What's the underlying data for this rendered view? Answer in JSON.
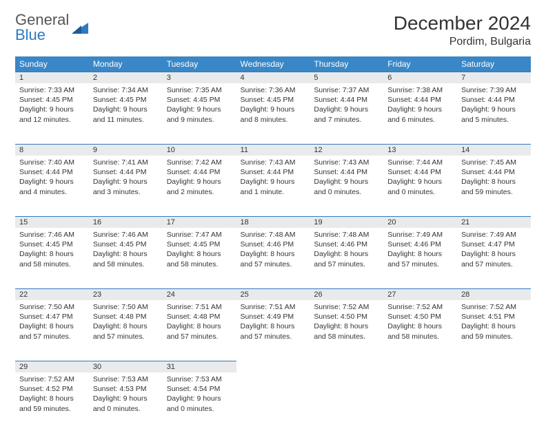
{
  "brand": {
    "name_a": "General",
    "name_b": "Blue"
  },
  "title": "December 2024",
  "location": "Pordim, Bulgaria",
  "colors": {
    "header_bg": "#3a87c7",
    "daynum_bg": "#e9eaec",
    "rule": "#2f7ac0",
    "text": "#333333"
  },
  "dayHeaders": [
    "Sunday",
    "Monday",
    "Tuesday",
    "Wednesday",
    "Thursday",
    "Friday",
    "Saturday"
  ],
  "weeks": [
    [
      {
        "n": "1",
        "sr": "7:33 AM",
        "ss": "4:45 PM",
        "dl": "9 hours and 12 minutes."
      },
      {
        "n": "2",
        "sr": "7:34 AM",
        "ss": "4:45 PM",
        "dl": "9 hours and 11 minutes."
      },
      {
        "n": "3",
        "sr": "7:35 AM",
        "ss": "4:45 PM",
        "dl": "9 hours and 9 minutes."
      },
      {
        "n": "4",
        "sr": "7:36 AM",
        "ss": "4:45 PM",
        "dl": "9 hours and 8 minutes."
      },
      {
        "n": "5",
        "sr": "7:37 AM",
        "ss": "4:44 PM",
        "dl": "9 hours and 7 minutes."
      },
      {
        "n": "6",
        "sr": "7:38 AM",
        "ss": "4:44 PM",
        "dl": "9 hours and 6 minutes."
      },
      {
        "n": "7",
        "sr": "7:39 AM",
        "ss": "4:44 PM",
        "dl": "9 hours and 5 minutes."
      }
    ],
    [
      {
        "n": "8",
        "sr": "7:40 AM",
        "ss": "4:44 PM",
        "dl": "9 hours and 4 minutes."
      },
      {
        "n": "9",
        "sr": "7:41 AM",
        "ss": "4:44 PM",
        "dl": "9 hours and 3 minutes."
      },
      {
        "n": "10",
        "sr": "7:42 AM",
        "ss": "4:44 PM",
        "dl": "9 hours and 2 minutes."
      },
      {
        "n": "11",
        "sr": "7:43 AM",
        "ss": "4:44 PM",
        "dl": "9 hours and 1 minute."
      },
      {
        "n": "12",
        "sr": "7:43 AM",
        "ss": "4:44 PM",
        "dl": "9 hours and 0 minutes."
      },
      {
        "n": "13",
        "sr": "7:44 AM",
        "ss": "4:44 PM",
        "dl": "9 hours and 0 minutes."
      },
      {
        "n": "14",
        "sr": "7:45 AM",
        "ss": "4:44 PM",
        "dl": "8 hours and 59 minutes."
      }
    ],
    [
      {
        "n": "15",
        "sr": "7:46 AM",
        "ss": "4:45 PM",
        "dl": "8 hours and 58 minutes."
      },
      {
        "n": "16",
        "sr": "7:46 AM",
        "ss": "4:45 PM",
        "dl": "8 hours and 58 minutes."
      },
      {
        "n": "17",
        "sr": "7:47 AM",
        "ss": "4:45 PM",
        "dl": "8 hours and 58 minutes."
      },
      {
        "n": "18",
        "sr": "7:48 AM",
        "ss": "4:46 PM",
        "dl": "8 hours and 57 minutes."
      },
      {
        "n": "19",
        "sr": "7:48 AM",
        "ss": "4:46 PM",
        "dl": "8 hours and 57 minutes."
      },
      {
        "n": "20",
        "sr": "7:49 AM",
        "ss": "4:46 PM",
        "dl": "8 hours and 57 minutes."
      },
      {
        "n": "21",
        "sr": "7:49 AM",
        "ss": "4:47 PM",
        "dl": "8 hours and 57 minutes."
      }
    ],
    [
      {
        "n": "22",
        "sr": "7:50 AM",
        "ss": "4:47 PM",
        "dl": "8 hours and 57 minutes."
      },
      {
        "n": "23",
        "sr": "7:50 AM",
        "ss": "4:48 PM",
        "dl": "8 hours and 57 minutes."
      },
      {
        "n": "24",
        "sr": "7:51 AM",
        "ss": "4:48 PM",
        "dl": "8 hours and 57 minutes."
      },
      {
        "n": "25",
        "sr": "7:51 AM",
        "ss": "4:49 PM",
        "dl": "8 hours and 57 minutes."
      },
      {
        "n": "26",
        "sr": "7:52 AM",
        "ss": "4:50 PM",
        "dl": "8 hours and 58 minutes."
      },
      {
        "n": "27",
        "sr": "7:52 AM",
        "ss": "4:50 PM",
        "dl": "8 hours and 58 minutes."
      },
      {
        "n": "28",
        "sr": "7:52 AM",
        "ss": "4:51 PM",
        "dl": "8 hours and 59 minutes."
      }
    ],
    [
      {
        "n": "29",
        "sr": "7:52 AM",
        "ss": "4:52 PM",
        "dl": "8 hours and 59 minutes."
      },
      {
        "n": "30",
        "sr": "7:53 AM",
        "ss": "4:53 PM",
        "dl": "9 hours and 0 minutes."
      },
      {
        "n": "31",
        "sr": "7:53 AM",
        "ss": "4:54 PM",
        "dl": "9 hours and 0 minutes."
      },
      null,
      null,
      null,
      null
    ]
  ],
  "labels": {
    "sunrise": "Sunrise: ",
    "sunset": "Sunset: ",
    "daylight": "Daylight: "
  }
}
